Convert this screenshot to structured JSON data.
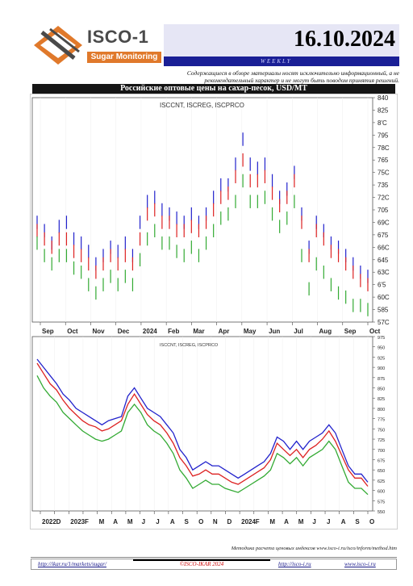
{
  "header": {
    "brand_name": "ISCO-1",
    "brand_subtitle": "Sugar Monitoring",
    "date": "16.10.2024",
    "frequency": "WEEKLY",
    "disclaimer": "Содержащиеся в обзоре материалы носят исключительно информационный, а не рекомендательный характер и не могут быть поводом принятия решений.",
    "colors": {
      "accent_blue": "#1a1f96",
      "brand_orange": "#e0792b",
      "date_bg": "#e6e6f5"
    }
  },
  "chart_section": {
    "title": "Российские оптовые цены на сахар-песок, USD/MT"
  },
  "chart_data": [
    {
      "type": "line",
      "legend_text": "ISCCNT, ISCREG, ISCPRCO",
      "x_ticks": [
        "Sep",
        "Oct",
        "Nov",
        "Dec",
        "2024",
        "Feb",
        "Mar",
        "Apr",
        "May",
        "Jun",
        "Jul",
        "Aug",
        "Sep",
        "Oct"
      ],
      "y_ticks": [
        "840",
        "825",
        "8'C",
        "795",
        "78C",
        "765",
        "75C",
        "735",
        "72C",
        "705",
        "69C",
        "675",
        "66C",
        "645",
        "63C",
        "6'5",
        "60C",
        "585",
        "57C"
      ],
      "ylim": [
        570,
        840
      ],
      "series": [
        {
          "name": "ISCCNT",
          "color": "#2222cc",
          "values": [
            690,
            680,
            665,
            685,
            690,
            670,
            665,
            655,
            640,
            650,
            660,
            655,
            665,
            650,
            690,
            715,
            720,
            705,
            700,
            695,
            690,
            700,
            690,
            700,
            720,
            735,
            735,
            760,
            790,
            760,
            755,
            760,
            740,
            720,
            730,
            750,
            700,
            660,
            690,
            680,
            665,
            660,
            650,
            640,
            630,
            625
          ]
        },
        {
          "name": "ISCREG",
          "color": "#dd2222",
          "values": [
            680,
            670,
            660,
            670,
            670,
            655,
            650,
            640,
            630,
            640,
            650,
            640,
            650,
            640,
            670,
            700,
            705,
            690,
            690,
            680,
            680,
            685,
            680,
            690,
            705,
            720,
            725,
            745,
            765,
            740,
            740,
            745,
            725,
            710,
            720,
            740,
            690,
            650,
            680,
            670,
            655,
            650,
            640,
            630,
            620,
            615
          ]
        },
        {
          "name": "ISCPRCO",
          "color": "#33aa33",
          "values": [
            665,
            650,
            640,
            650,
            650,
            635,
            630,
            615,
            605,
            615,
            625,
            615,
            625,
            615,
            645,
            670,
            680,
            665,
            665,
            655,
            650,
            660,
            650,
            665,
            680,
            695,
            700,
            715,
            740,
            715,
            715,
            720,
            700,
            685,
            695,
            715,
            650,
            610,
            640,
            630,
            615,
            605,
            600,
            590,
            590,
            585
          ]
        }
      ]
    },
    {
      "type": "line",
      "legend_text": "ISCCNT, ISCREG, ISCPRCO",
      "x_ticks": [
        "2022",
        "D",
        "2023",
        "F",
        "M",
        "A",
        "M",
        "J",
        "J",
        "A",
        "S",
        "O",
        "N",
        "D",
        "2024",
        "F",
        "M",
        "A",
        "M",
        "J",
        "J",
        "A",
        "S",
        "O"
      ],
      "y_ticks": [
        "975",
        "950",
        "925",
        "900",
        "875",
        "850",
        "825",
        "800",
        "775",
        "750",
        "725",
        "700",
        "675",
        "650",
        "625",
        "600",
        "575",
        "550"
      ],
      "ylim": [
        550,
        975
      ],
      "series": [
        {
          "name": "ISCCNT",
          "color": "#2222cc",
          "values": [
            920,
            900,
            880,
            860,
            835,
            820,
            800,
            790,
            780,
            770,
            760,
            770,
            775,
            780,
            830,
            850,
            825,
            800,
            790,
            780,
            760,
            740,
            700,
            680,
            650,
            660,
            670,
            660,
            660,
            650,
            640,
            630,
            640,
            650,
            660,
            670,
            690,
            730,
            720,
            700,
            720,
            700,
            720,
            730,
            740,
            760,
            740,
            700,
            660,
            640,
            640,
            620
          ]
        },
        {
          "name": "ISCREG",
          "color": "#dd2222",
          "values": [
            910,
            885,
            860,
            845,
            820,
            800,
            785,
            770,
            760,
            755,
            745,
            750,
            760,
            770,
            810,
            835,
            810,
            785,
            770,
            760,
            740,
            715,
            680,
            660,
            635,
            640,
            650,
            640,
            640,
            630,
            620,
            615,
            625,
            635,
            645,
            655,
            675,
            715,
            700,
            685,
            700,
            680,
            700,
            710,
            725,
            745,
            720,
            685,
            650,
            630,
            630,
            610
          ]
        },
        {
          "name": "ISCPRCO",
          "color": "#33aa33",
          "values": [
            880,
            850,
            830,
            815,
            790,
            775,
            760,
            745,
            735,
            725,
            720,
            725,
            735,
            745,
            790,
            810,
            790,
            760,
            745,
            735,
            715,
            690,
            650,
            630,
            605,
            615,
            625,
            615,
            615,
            605,
            600,
            595,
            605,
            615,
            625,
            635,
            650,
            690,
            680,
            665,
            680,
            660,
            680,
            690,
            700,
            720,
            700,
            660,
            620,
            605,
            605,
            590
          ]
        }
      ]
    }
  ],
  "footer": {
    "method_note": "Методика расчета ценовых индексов www.isco-i.ru/isco/inform/method.htm",
    "link_left": "http://ikar.ru/1/markets/sugar/",
    "copyright": "©ISCO-IKAR 2024",
    "link_mid": "http://isco-i.ru",
    "link_right": "www.isco-i.ru"
  }
}
